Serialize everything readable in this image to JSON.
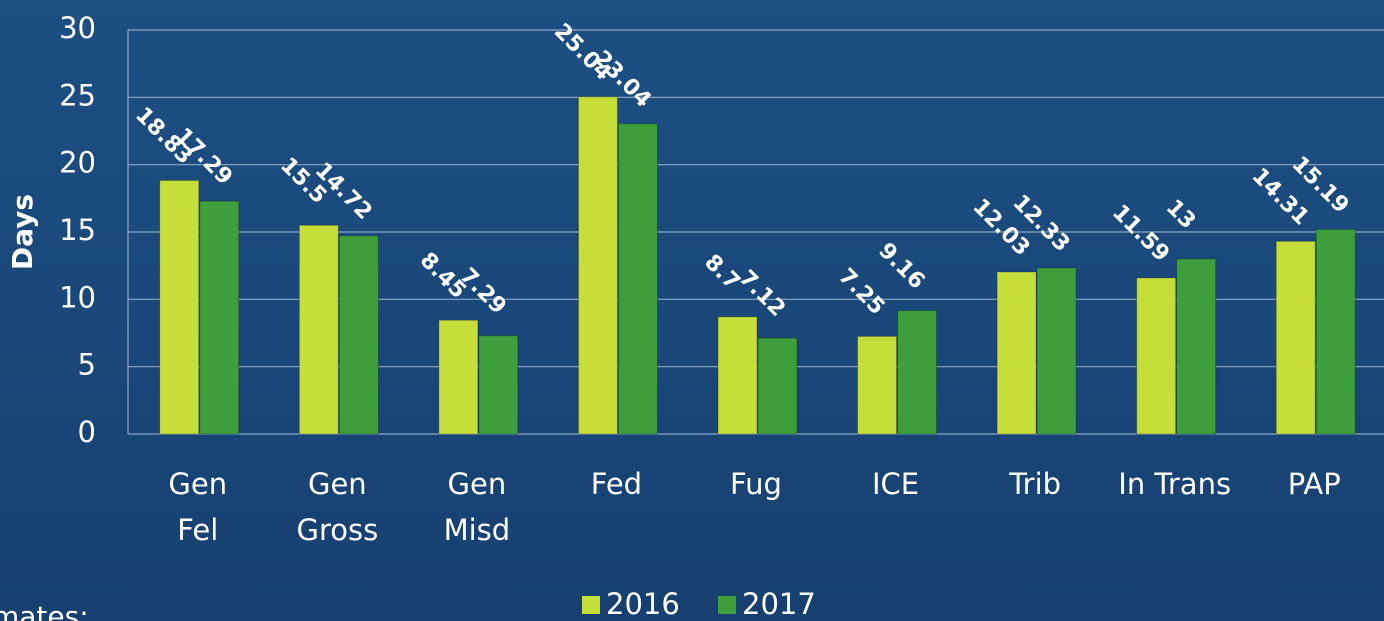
{
  "chart_data": {
    "type": "bar",
    "y_label": "Days",
    "categories": [
      [
        "Gen",
        "Fel"
      ],
      [
        "Gen",
        "Gross"
      ],
      [
        "Gen",
        "Misd"
      ],
      [
        "Fed"
      ],
      [
        "Fug"
      ],
      [
        "ICE"
      ],
      [
        "Trib"
      ],
      [
        "In Trans"
      ],
      [
        "PAP"
      ]
    ],
    "series": [
      {
        "name": "2016",
        "color": "#c5de3a",
        "values": [
          18.83,
          15.5,
          8.45,
          25.04,
          8.7,
          7.25,
          12.03,
          11.59,
          14.31
        ]
      },
      {
        "name": "2017",
        "color": "#3f9e3c",
        "values": [
          17.29,
          14.72,
          7.29,
          23.04,
          7.12,
          9.16,
          12.33,
          13,
          15.19
        ]
      }
    ],
    "ylim": [
      0,
      30
    ],
    "yticks": [
      0,
      5,
      10,
      15,
      20,
      25,
      30
    ],
    "grid": true,
    "legend": "bottom",
    "note": "mates:"
  }
}
